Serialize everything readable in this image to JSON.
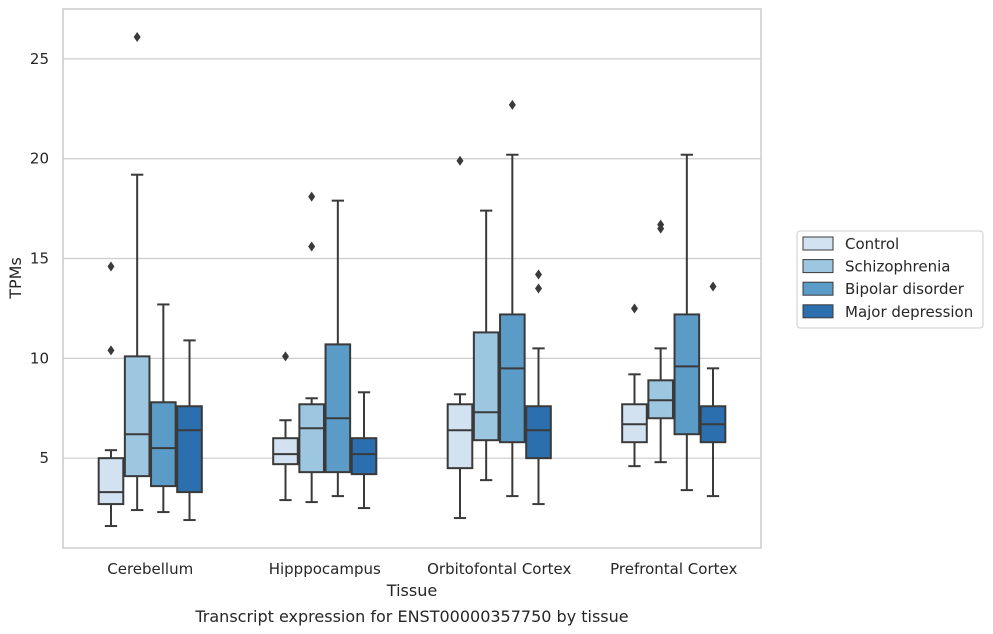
{
  "chart_data": {
    "type": "box",
    "caption": "Transcript expression for ENST00000357750 by tissue",
    "xlabel": "Tissue",
    "ylabel": "TPMs",
    "ylim": [
      0.5,
      27.5
    ],
    "yticks": [
      5,
      10,
      15,
      20,
      25
    ],
    "grid": "y",
    "legend_position": "right",
    "categories": [
      "Cerebellum",
      "Hipppocampus",
      "Orbitofontal Cortex",
      "Prefrontal Cortex"
    ],
    "series": [
      {
        "name": "Control",
        "color": "#d2e2f1",
        "boxes": [
          {
            "whisker_low": 1.6,
            "q1": 2.7,
            "median": 3.3,
            "q3": 5.0,
            "whisker_high": 5.4,
            "outliers": [
              14.6,
              10.4
            ]
          },
          {
            "whisker_low": 2.9,
            "q1": 4.7,
            "median": 5.2,
            "q3": 6.0,
            "whisker_high": 6.9,
            "outliers": [
              10.1
            ]
          },
          {
            "whisker_low": 2.0,
            "q1": 4.5,
            "median": 6.4,
            "q3": 7.7,
            "whisker_high": 8.2,
            "outliers": [
              19.9
            ]
          },
          {
            "whisker_low": 4.6,
            "q1": 5.8,
            "median": 6.7,
            "q3": 7.7,
            "whisker_high": 9.2,
            "outliers": [
              12.5
            ]
          }
        ]
      },
      {
        "name": "Schizophrenia",
        "color": "#9dc6e0",
        "boxes": [
          {
            "whisker_low": 2.4,
            "q1": 4.1,
            "median": 6.2,
            "q3": 10.1,
            "whisker_high": 19.2,
            "outliers": [
              26.1
            ]
          },
          {
            "whisker_low": 2.8,
            "q1": 4.3,
            "median": 6.5,
            "q3": 7.7,
            "whisker_high": 8.0,
            "outliers": [
              18.1,
              15.6
            ]
          },
          {
            "whisker_low": 3.9,
            "q1": 5.9,
            "median": 7.3,
            "q3": 11.3,
            "whisker_high": 17.4,
            "outliers": []
          },
          {
            "whisker_low": 4.8,
            "q1": 7.0,
            "median": 7.9,
            "q3": 8.9,
            "whisker_high": 10.5,
            "outliers": [
              16.7,
              16.5
            ]
          }
        ]
      },
      {
        "name": "Bipolar disorder",
        "color": "#5b9bc8",
        "boxes": [
          {
            "whisker_low": 2.3,
            "q1": 3.6,
            "median": 5.5,
            "q3": 7.8,
            "whisker_high": 12.7,
            "outliers": []
          },
          {
            "whisker_low": 3.1,
            "q1": 4.3,
            "median": 7.0,
            "q3": 10.7,
            "whisker_high": 17.9,
            "outliers": []
          },
          {
            "whisker_low": 3.1,
            "q1": 5.8,
            "median": 9.5,
            "q3": 12.2,
            "whisker_high": 20.2,
            "outliers": [
              22.7
            ]
          },
          {
            "whisker_low": 3.4,
            "q1": 6.2,
            "median": 9.6,
            "q3": 12.2,
            "whisker_high": 20.2,
            "outliers": []
          }
        ]
      },
      {
        "name": "Major depression",
        "color": "#2c6faf",
        "boxes": [
          {
            "whisker_low": 1.9,
            "q1": 3.3,
            "median": 6.4,
            "q3": 7.6,
            "whisker_high": 10.9,
            "outliers": []
          },
          {
            "whisker_low": 2.5,
            "q1": 4.2,
            "median": 5.2,
            "q3": 6.0,
            "whisker_high": 8.3,
            "outliers": []
          },
          {
            "whisker_low": 2.7,
            "q1": 5.0,
            "median": 6.4,
            "q3": 7.6,
            "whisker_high": 10.5,
            "outliers": [
              14.2,
              13.5
            ]
          },
          {
            "whisker_low": 3.1,
            "q1": 5.8,
            "median": 6.7,
            "q3": 7.6,
            "whisker_high": 9.5,
            "outliers": [
              13.6
            ]
          }
        ]
      }
    ]
  }
}
